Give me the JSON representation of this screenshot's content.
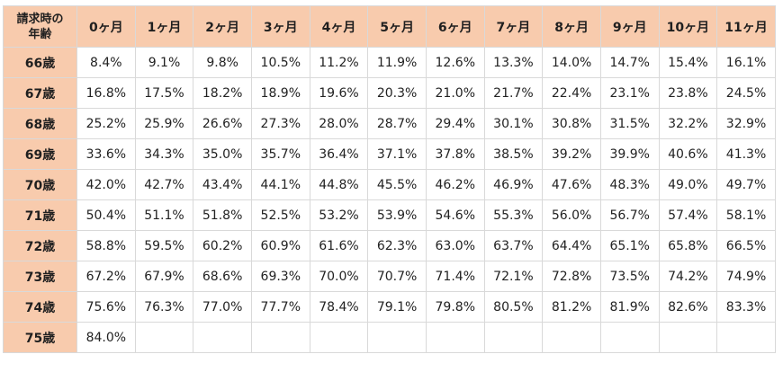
{
  "table": {
    "corner_label_line1": "請求時の",
    "corner_label_line2": "年齢",
    "months": [
      "0ヶ月",
      "1ヶ月",
      "2ヶ月",
      "3ヶ月",
      "4ヶ月",
      "5ヶ月",
      "6ヶ月",
      "7ヶ月",
      "8ヶ月",
      "9ヶ月",
      "10ヶ月",
      "11ヶ月"
    ],
    "rows": [
      {
        "age": "66歳",
        "values": [
          "8.4%",
          "9.1%",
          "9.8%",
          "10.5%",
          "11.2%",
          "11.9%",
          "12.6%",
          "13.3%",
          "14.0%",
          "14.7%",
          "15.4%",
          "16.1%"
        ]
      },
      {
        "age": "67歳",
        "values": [
          "16.8%",
          "17.5%",
          "18.2%",
          "18.9%",
          "19.6%",
          "20.3%",
          "21.0%",
          "21.7%",
          "22.4%",
          "23.1%",
          "23.8%",
          "24.5%"
        ]
      },
      {
        "age": "68歳",
        "values": [
          "25.2%",
          "25.9%",
          "26.6%",
          "27.3%",
          "28.0%",
          "28.7%",
          "29.4%",
          "30.1%",
          "30.8%",
          "31.5%",
          "32.2%",
          "32.9%"
        ]
      },
      {
        "age": "69歳",
        "values": [
          "33.6%",
          "34.3%",
          "35.0%",
          "35.7%",
          "36.4%",
          "37.1%",
          "37.8%",
          "38.5%",
          "39.2%",
          "39.9%",
          "40.6%",
          "41.3%"
        ]
      },
      {
        "age": "70歳",
        "values": [
          "42.0%",
          "42.7%",
          "43.4%",
          "44.1%",
          "44.8%",
          "45.5%",
          "46.2%",
          "46.9%",
          "47.6%",
          "48.3%",
          "49.0%",
          "49.7%"
        ]
      },
      {
        "age": "71歳",
        "values": [
          "50.4%",
          "51.1%",
          "51.8%",
          "52.5%",
          "53.2%",
          "53.9%",
          "54.6%",
          "55.3%",
          "56.0%",
          "56.7%",
          "57.4%",
          "58.1%"
        ]
      },
      {
        "age": "72歳",
        "values": [
          "58.8%",
          "59.5%",
          "60.2%",
          "60.9%",
          "61.6%",
          "62.3%",
          "63.0%",
          "63.7%",
          "64.4%",
          "65.1%",
          "65.8%",
          "66.5%"
        ]
      },
      {
        "age": "73歳",
        "values": [
          "67.2%",
          "67.9%",
          "68.6%",
          "69.3%",
          "70.0%",
          "70.7%",
          "71.4%",
          "72.1%",
          "72.8%",
          "73.5%",
          "74.2%",
          "74.9%"
        ]
      },
      {
        "age": "74歳",
        "values": [
          "75.6%",
          "76.3%",
          "77.0%",
          "77.7%",
          "78.4%",
          "79.1%",
          "79.8%",
          "80.5%",
          "81.2%",
          "81.9%",
          "82.6%",
          "83.3%"
        ]
      },
      {
        "age": "75歳",
        "values": [
          "84.0%",
          "",
          "",
          "",
          "",
          "",
          "",
          "",
          "",
          "",
          "",
          ""
        ]
      }
    ]
  }
}
